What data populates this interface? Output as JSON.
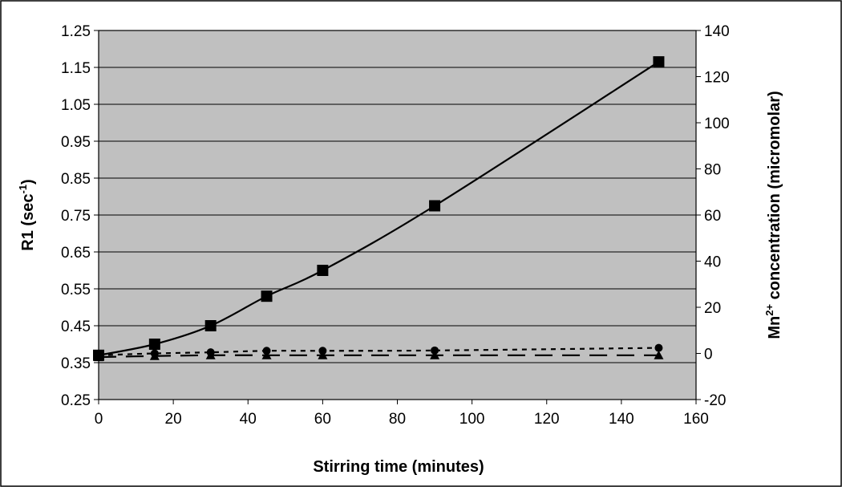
{
  "chart_data": {
    "type": "line",
    "title": "",
    "xlabel": "Stirring time (minutes)",
    "ylabel": "R1 (sec-1)",
    "ylabel_parts": {
      "base": "R1 (sec",
      "sup": "-1",
      "end": ")"
    },
    "y2label": "Mn2+ concentration (micromolar)",
    "y2label_parts": {
      "base": "Mn",
      "sup": "2+",
      "end": " concentration (micromolar)"
    },
    "xlim": [
      0,
      160
    ],
    "ylim": [
      0.25,
      1.25
    ],
    "y2lim": [
      -20,
      140
    ],
    "x_ticks": [
      "0",
      "20",
      "40",
      "60",
      "80",
      "100",
      "120",
      "140",
      "160"
    ],
    "y_ticks": [
      "0.25",
      "0.35",
      "0.45",
      "0.55",
      "0.65",
      "0.75",
      "0.85",
      "0.95",
      "1.05",
      "1.15",
      "1.25"
    ],
    "y2_ticks": [
      "-20",
      "0",
      "20",
      "40",
      "60",
      "80",
      "100",
      "120",
      "140"
    ],
    "grid": true,
    "legend": "none",
    "colors": {
      "plot_bg": "#c0c0c0",
      "line": "#000000",
      "grid": "#000000"
    },
    "series": [
      {
        "axis": "left",
        "marker": "square",
        "line_style": "solid",
        "x": [
          0,
          15,
          30,
          45,
          60,
          90,
          150
        ],
        "values": [
          0.37,
          0.4,
          0.45,
          0.53,
          0.6,
          0.775,
          1.165
        ]
      },
      {
        "axis": "left",
        "marker": "circle",
        "line_style": "short-dash",
        "x": [
          0,
          15,
          30,
          45,
          60,
          90,
          150
        ],
        "values": [
          0.37,
          0.375,
          0.378,
          0.382,
          0.382,
          0.383,
          0.39
        ]
      },
      {
        "axis": "left",
        "marker": "triangle",
        "line_style": "long-dash",
        "x": [
          0,
          15,
          30,
          45,
          60,
          90,
          150
        ],
        "values": [
          0.365,
          0.368,
          0.37,
          0.37,
          0.37,
          0.37,
          0.37
        ]
      }
    ]
  }
}
